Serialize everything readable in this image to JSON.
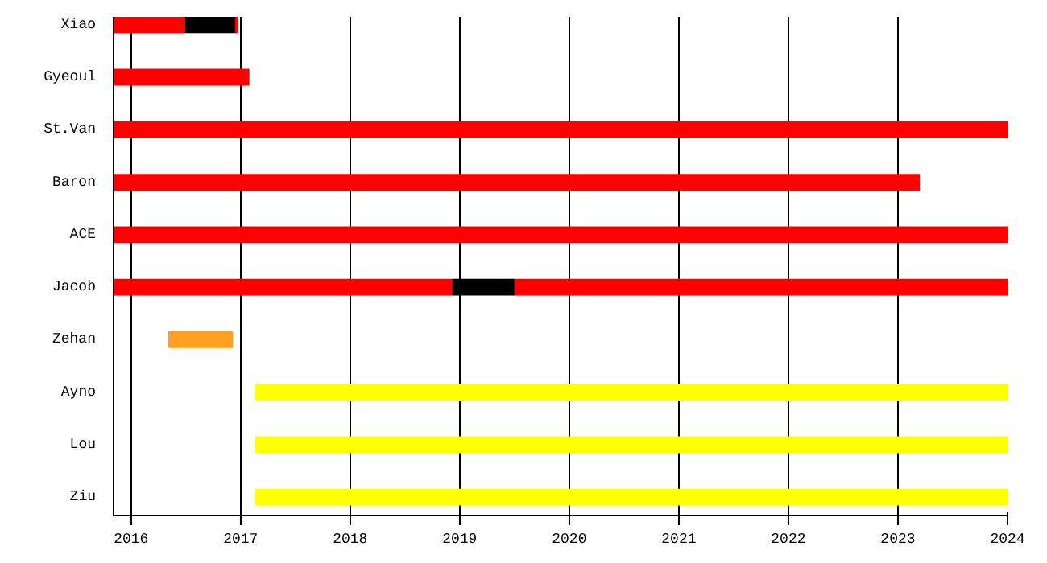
{
  "chart_data": {
    "type": "bar",
    "orientation": "horizontal",
    "categories": [
      "Xiao",
      "Gyeoul",
      "St.Van",
      "Baron",
      "ACE",
      "Jacob",
      "Zehan",
      "Ayno",
      "Lou",
      "Ziu"
    ],
    "series": [
      {
        "color": "#ff0000",
        "base": [
          2015.84,
          2015.84,
          2015.84,
          2015.84,
          2015.84,
          2015.84,
          null,
          null,
          null,
          null
        ],
        "values": [
          0.65,
          1.24,
          8.16,
          7.36,
          8.16,
          3.09,
          null,
          null,
          null,
          null
        ]
      },
      {
        "color": "#000000",
        "base": [
          2016.49,
          null,
          null,
          null,
          null,
          2018.93,
          null,
          null,
          null,
          null
        ],
        "values": [
          0.46,
          null,
          null,
          null,
          null,
          0.57,
          null,
          null,
          null,
          null
        ]
      },
      {
        "color": "#ff0000",
        "base": [
          2016.95,
          null,
          null,
          null,
          null,
          2019.5,
          null,
          null,
          null,
          null
        ],
        "values": [
          0.03,
          null,
          null,
          null,
          null,
          4.5,
          null,
          null,
          null,
          null
        ]
      },
      {
        "color": "#ffa020",
        "base": [
          null,
          null,
          null,
          null,
          null,
          null,
          2016.34,
          null,
          null,
          null
        ],
        "values": [
          null,
          null,
          null,
          null,
          null,
          null,
          0.59,
          null,
          null,
          null
        ]
      },
      {
        "color": "#ffff00",
        "base": [
          null,
          null,
          null,
          null,
          null,
          null,
          null,
          2017.13,
          2017.13,
          2017.13
        ],
        "values": [
          null,
          null,
          null,
          null,
          null,
          null,
          null,
          6.87,
          6.87,
          6.87
        ]
      }
    ],
    "xlim": [
      2015.84,
      2024
    ],
    "xticks": [
      2016,
      2017,
      2018,
      2019,
      2020,
      2021,
      2022,
      2023,
      2024
    ],
    "grid": "x"
  }
}
